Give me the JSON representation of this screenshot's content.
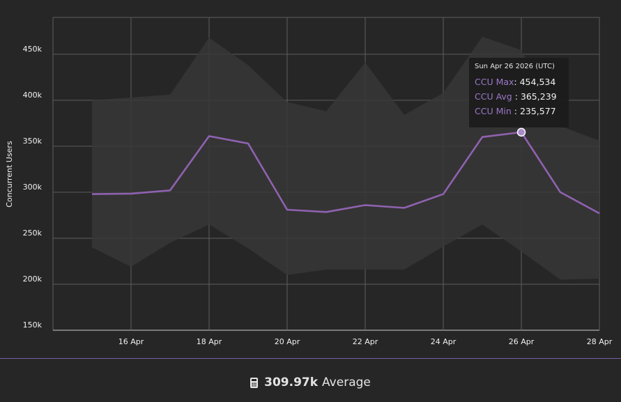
{
  "chart_data": {
    "type": "line",
    "title": "",
    "xlabel": "",
    "ylabel": "Concurrent Users",
    "ylim": [
      150000,
      490000
    ],
    "y_ticks": [
      150000,
      200000,
      250000,
      300000,
      350000,
      400000,
      450000
    ],
    "y_tick_labels": [
      "150k",
      "200k",
      "250k",
      "300k",
      "350k",
      "400k",
      "450k"
    ],
    "x_tick_labels": [
      "16 Apr",
      "18 Apr",
      "20 Apr",
      "22 Apr",
      "24 Apr",
      "26 Apr",
      "28 Apr"
    ],
    "x": [
      "2026-04-15",
      "2026-04-16",
      "2026-04-17",
      "2026-04-18",
      "2026-04-19",
      "2026-04-20",
      "2026-04-21",
      "2026-04-22",
      "2026-04-23",
      "2026-04-24",
      "2026-04-25",
      "2026-04-26",
      "2026-04-27",
      "2026-04-28"
    ],
    "x_range": [
      "2026-04-14",
      "2026-04-28"
    ],
    "grid": true,
    "series": [
      {
        "name": "CCU Avg",
        "type": "line",
        "color": "#8f62b0",
        "values": [
          298000,
          298500,
          302000,
          361000,
          353000,
          281000,
          278500,
          286000,
          283000,
          298000,
          360000,
          365239,
          300000,
          277000
        ]
      },
      {
        "name": "CCU Max",
        "type": "range-upper",
        "color": "#373737",
        "values": [
          400000,
          403000,
          406000,
          468000,
          438000,
          398000,
          388000,
          441000,
          384000,
          408000,
          469000,
          454534,
          372000,
          356000
        ]
      },
      {
        "name": "CCU Min",
        "type": "range-lower",
        "color": "#373737",
        "values": [
          240000,
          219000,
          245000,
          265000,
          239000,
          210000,
          216000,
          216000,
          216000,
          241000,
          265000,
          235577,
          205000,
          206000
        ]
      }
    ],
    "highlight_index": 11
  },
  "tooltip": {
    "date": "Sun Apr 26 2026 (UTC)",
    "rows": [
      {
        "key": "CCU Max",
        "value": "454,534"
      },
      {
        "key": "CCU Avg",
        "value": "365,239"
      },
      {
        "key": "CCU Min",
        "value": "235,577"
      }
    ]
  },
  "footer": {
    "icon": "calculator-icon",
    "average_value": "309.97k",
    "average_label": "Average"
  },
  "colors": {
    "background": "#262626",
    "band": "#373737",
    "line": "#8f62b0",
    "grid": "#5e5e5e",
    "accent": "#7a5fa6"
  }
}
